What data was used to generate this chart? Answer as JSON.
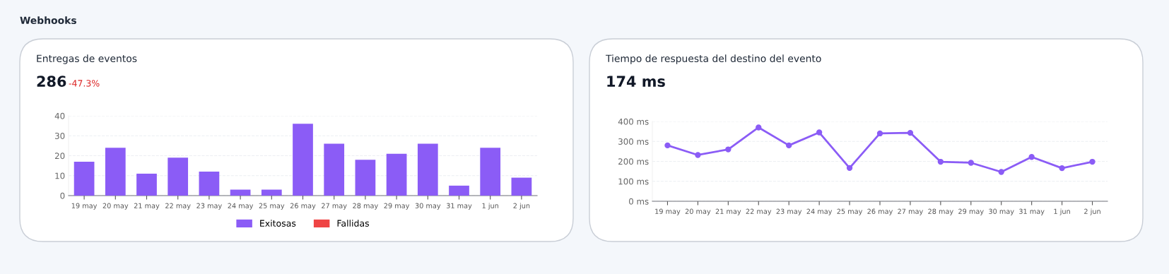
{
  "chart_data": [
    {
      "type": "bar",
      "title": "Entregas de eventos",
      "subtitle": "286",
      "annotations": [
        "Webhooks",
        "-47.3%"
      ],
      "categories": [
        "19 may",
        "20 may",
        "21 may",
        "22 may",
        "23 may",
        "24 may",
        "25 may",
        "26 may",
        "27 may",
        "28 may",
        "29 may",
        "30 may",
        "31 may",
        "1 jun",
        "2 jun"
      ],
      "series": [
        {
          "name": "Exitosas",
          "color": "#8b5cf6",
          "values": [
            17,
            24,
            11,
            19,
            12,
            3,
            3,
            36,
            26,
            18,
            21,
            26,
            5,
            24,
            9
          ]
        },
        {
          "name": "Fallidas",
          "color": "#ef4444",
          "values": [
            null,
            null,
            null,
            null,
            null,
            null,
            null,
            null,
            null,
            null,
            null,
            null,
            null,
            null,
            null
          ]
        }
      ],
      "ylim": [
        0,
        40
      ],
      "yticks": [
        0,
        10,
        20,
        30,
        40
      ],
      "grid": "y",
      "legend": "bottom"
    },
    {
      "type": "line",
      "title": "Tiempo de respuesta del destino del evento",
      "subtitle": "174 ms",
      "categories": [
        "19 may",
        "20 may",
        "21 may",
        "22 may",
        "23 may",
        "24 may",
        "25 may",
        "26 may",
        "27 may",
        "28 may",
        "29 may",
        "30 may",
        "31 may",
        "1 jun",
        "2 jun"
      ],
      "series": [
        {
          "color": "#8b5cf6",
          "values": [
            280,
            232,
            260,
            370,
            280,
            345,
            167,
            340,
            343,
            198,
            193,
            147,
            222,
            166,
            198
          ]
        }
      ],
      "ylim": [
        0,
        400
      ],
      "yticks": [
        {
          "value": 0,
          "label": "0 ms"
        },
        {
          "value": 100,
          "label": "100 ms"
        },
        {
          "value": 200,
          "label": "200 ms"
        },
        {
          "value": 300,
          "label": "300 ms"
        },
        {
          "value": 400,
          "label": "400 ms"
        }
      ],
      "grid": "y",
      "marker": "circle",
      "legend": false
    }
  ]
}
